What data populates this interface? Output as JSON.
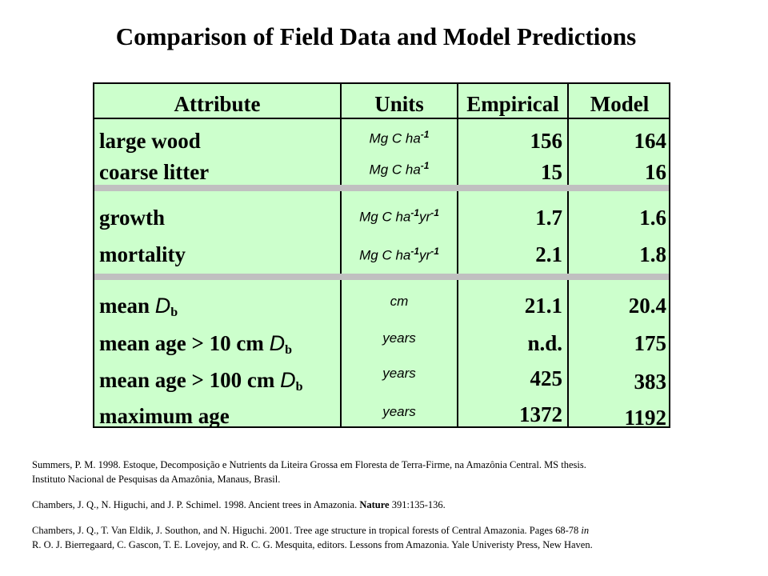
{
  "title": "Comparison of Field Data and Model Predictions",
  "table": {
    "headers": {
      "attribute": "Attribute",
      "units": "Units",
      "empirical": "Empirical",
      "model": "Model"
    },
    "rows": [
      {
        "attribute": "large wood",
        "unit_base": "Mg C ha",
        "unit_exp1": "-1",
        "unit_mid": "",
        "unit_exp2": "",
        "empirical": "156",
        "model": "164"
      },
      {
        "attribute": "coarse litter",
        "unit_base": "Mg C ha",
        "unit_exp1": "-1",
        "unit_mid": "",
        "unit_exp2": "",
        "empirical": "15",
        "model": "16"
      },
      {
        "attribute": "growth",
        "unit_base": "Mg C ha",
        "unit_exp1": "-1",
        "unit_mid": "yr",
        "unit_exp2": "-1",
        "empirical": "1.7",
        "model": "1.6"
      },
      {
        "attribute": "mortality",
        "unit_base": "Mg C ha",
        "unit_exp1": "-1",
        "unit_mid": "yr",
        "unit_exp2": "-1",
        "empirical": "2.1",
        "model": "1.8"
      },
      {
        "attribute": "mean ",
        "dvar": "D",
        "dsub": "b",
        "unit_base": "cm",
        "empirical": "21.1",
        "model": "20.4"
      },
      {
        "attribute": "mean age > 10 cm ",
        "dvar": "D",
        "dsub": "b",
        "unit_base": "years",
        "empirical": "n.d.",
        "model": "175"
      },
      {
        "attribute": "mean age > 100 cm ",
        "dvar": "D",
        "dsub": "b",
        "unit_base": "years",
        "empirical": "425",
        "model": "383"
      },
      {
        "attribute": "maximum age",
        "unit_base": "years",
        "empirical": "1372",
        "model": "1192"
      }
    ]
  },
  "references": [
    {
      "line1": "Summers, P. M. 1998. Estoque, Decomposição e Nutrients da Liteira Grossa em Floresta de Terra-Firme, na Amazônia Central. MS thesis.",
      "line2": "Instituto Nacional de Pesquisas da Amazônia, Manaus, Brasil."
    },
    {
      "pre": "Chambers, J. Q., N. Higuchi, and J. P. Schimel. 1998. Ancient trees in Amazonia. ",
      "journal": "Nature",
      "post": " 391:135-136."
    },
    {
      "line1a": "Chambers, J. Q., T. Van Eldik, J. Southon, and N. Higuchi. 2001. Tree age structure in tropical forests of Central Amazonia. Pages 68-78 ",
      "in": "in",
      "line2": "R. O. J. Bierregaard, C. Gascon, T. E. Lovejoy, and R. C. G. Mesquita, editors. Lessons from Amazonia. Yale Univeristy Press, New Haven."
    }
  ]
}
